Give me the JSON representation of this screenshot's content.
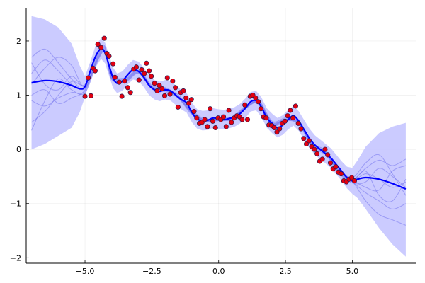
{
  "chart_data": {
    "type": "line",
    "title": "",
    "xlabel": "",
    "ylabel": "",
    "xlim": [
      -7.2,
      7.4
    ],
    "ylim": [
      -2.1,
      2.6
    ],
    "grid": true,
    "legend": "none",
    "xticks": [
      -5.0,
      -2.5,
      0.0,
      2.5,
      5.0
    ],
    "xtick_labels": [
      "−5.0",
      "−2.5",
      "0.0",
      "2.5",
      "5.0"
    ],
    "yticks": [
      -2,
      -1,
      0,
      1,
      2
    ],
    "ytick_labels": [
      "−2",
      "−1",
      "0",
      "1",
      "2"
    ],
    "colors": {
      "mean": "#0000ff",
      "band": "#c8c8ff",
      "samples": "#7a7aee",
      "points_fill": "#e3000f",
      "points_edge": "#2a1a50"
    },
    "mean": {
      "x": [
        -7.0,
        -6.5,
        -6.0,
        -5.5,
        -5.2,
        -5.0,
        -4.8,
        -4.6,
        -4.4,
        -4.25,
        -4.1,
        -3.95,
        -3.8,
        -3.6,
        -3.4,
        -3.2,
        -3.0,
        -2.8,
        -2.6,
        -2.4,
        -2.2,
        -2.0,
        -1.8,
        -1.6,
        -1.4,
        -1.2,
        -1.0,
        -0.8,
        -0.6,
        -0.4,
        -0.2,
        0.0,
        0.2,
        0.4,
        0.6,
        0.8,
        1.0,
        1.2,
        1.4,
        1.6,
        1.8,
        2.0,
        2.2,
        2.4,
        2.6,
        2.8,
        3.0,
        3.2,
        3.4,
        3.6,
        3.8,
        4.0,
        4.2,
        4.4,
        4.6,
        4.8,
        5.0,
        5.2,
        5.5,
        6.0,
        6.5,
        7.0
      ],
      "y": [
        1.23,
        1.27,
        1.25,
        1.18,
        1.12,
        1.16,
        1.45,
        1.72,
        1.86,
        1.78,
        1.55,
        1.32,
        1.22,
        1.26,
        1.38,
        1.47,
        1.44,
        1.33,
        1.18,
        1.1,
        1.07,
        1.1,
        1.08,
        1.0,
        0.92,
        0.86,
        0.68,
        0.56,
        0.53,
        0.54,
        0.58,
        0.56,
        0.55,
        0.57,
        0.6,
        0.66,
        0.76,
        0.88,
        0.9,
        0.78,
        0.58,
        0.48,
        0.4,
        0.45,
        0.55,
        0.62,
        0.52,
        0.36,
        0.2,
        0.08,
        0.0,
        -0.08,
        -0.16,
        -0.28,
        -0.4,
        -0.52,
        -0.58,
        -0.55,
        -0.52,
        -0.55,
        -0.63,
        -0.73
      ]
    },
    "band": {
      "x": [
        -7.0,
        -6.5,
        -6.0,
        -5.5,
        -5.2,
        -5.0,
        -4.8,
        -4.6,
        -4.4,
        -4.25,
        -4.1,
        -3.95,
        -3.8,
        -3.6,
        -3.4,
        -3.2,
        -3.0,
        -2.8,
        -2.6,
        -2.4,
        -2.2,
        -2.0,
        -1.8,
        -1.6,
        -1.4,
        -1.2,
        -1.0,
        -0.8,
        -0.6,
        -0.4,
        -0.2,
        0.0,
        0.2,
        0.4,
        0.6,
        0.8,
        1.0,
        1.2,
        1.4,
        1.6,
        1.8,
        2.0,
        2.2,
        2.4,
        2.6,
        2.8,
        3.0,
        3.2,
        3.4,
        3.6,
        3.8,
        4.0,
        4.2,
        4.4,
        4.6,
        4.8,
        5.0,
        5.2,
        5.5,
        6.0,
        6.5,
        7.0
      ],
      "upper": [
        2.46,
        2.4,
        2.25,
        1.95,
        1.55,
        1.35,
        1.62,
        1.92,
        2.05,
        1.97,
        1.74,
        1.51,
        1.4,
        1.44,
        1.56,
        1.65,
        1.62,
        1.51,
        1.36,
        1.28,
        1.25,
        1.28,
        1.26,
        1.18,
        1.1,
        1.04,
        0.86,
        0.74,
        0.71,
        0.72,
        0.76,
        0.74,
        0.73,
        0.75,
        0.78,
        0.84,
        0.94,
        1.06,
        1.08,
        0.96,
        0.76,
        0.66,
        0.58,
        0.63,
        0.73,
        0.8,
        0.7,
        0.54,
        0.38,
        0.26,
        0.18,
        0.1,
        0.02,
        -0.1,
        -0.22,
        -0.32,
        -0.34,
        -0.2,
        0.05,
        0.3,
        0.42,
        0.49
      ],
      "lower": [
        0.0,
        0.1,
        0.25,
        0.4,
        0.68,
        0.97,
        1.28,
        1.52,
        1.67,
        1.59,
        1.36,
        1.13,
        1.04,
        1.08,
        1.2,
        1.29,
        1.26,
        1.15,
        1.0,
        0.92,
        0.89,
        0.92,
        0.9,
        0.82,
        0.74,
        0.68,
        0.5,
        0.38,
        0.35,
        0.36,
        0.4,
        0.38,
        0.37,
        0.39,
        0.42,
        0.48,
        0.58,
        0.7,
        0.72,
        0.6,
        0.4,
        0.3,
        0.22,
        0.27,
        0.37,
        0.44,
        0.34,
        0.18,
        0.02,
        -0.1,
        -0.18,
        -0.26,
        -0.34,
        -0.46,
        -0.58,
        -0.72,
        -0.82,
        -0.9,
        -1.1,
        -1.45,
        -1.75,
        -1.98
      ]
    },
    "samples": [
      {
        "x": [
          -7.0,
          -6.5,
          -6.0,
          -5.5,
          -5.0,
          -4.5,
          -4.25,
          -4.0,
          -3.5,
          -3.0,
          -2.5,
          -2.0,
          -1.5,
          -1.0,
          -0.5,
          0.0,
          0.5,
          1.0,
          1.5,
          2.0,
          2.5,
          3.0,
          3.5,
          4.0,
          4.5,
          5.0,
          5.5,
          6.0,
          6.5,
          7.0
        ],
        "y": [
          1.7,
          1.85,
          1.6,
          1.3,
          1.12,
          1.76,
          1.88,
          1.36,
          1.3,
          1.46,
          1.16,
          1.12,
          0.98,
          0.7,
          0.54,
          0.56,
          0.58,
          0.78,
          0.88,
          0.5,
          0.56,
          0.5,
          0.1,
          -0.04,
          -0.38,
          -0.55,
          -0.35,
          -0.2,
          -0.3,
          -0.18
        ]
      },
      {
        "x": [
          -7.0,
          -6.5,
          -6.0,
          -5.5,
          -5.0,
          -4.5,
          -4.25,
          -4.0,
          -3.5,
          -3.0,
          -2.5,
          -2.0,
          -1.5,
          -1.0,
          -0.5,
          0.0,
          0.5,
          1.0,
          1.5,
          2.0,
          2.5,
          3.0,
          3.5,
          4.0,
          4.5,
          5.0,
          5.5,
          6.0,
          6.5,
          7.0
        ],
        "y": [
          0.5,
          0.7,
          1.0,
          1.25,
          1.2,
          1.68,
          1.8,
          1.3,
          1.26,
          1.42,
          1.14,
          1.08,
          0.96,
          0.66,
          0.52,
          0.54,
          0.56,
          0.76,
          0.86,
          0.46,
          0.54,
          0.48,
          0.06,
          -0.08,
          -0.42,
          -0.6,
          -0.8,
          -0.95,
          -1.1,
          -1.0
        ]
      },
      {
        "x": [
          -7.0,
          -6.5,
          -6.0,
          -5.5,
          -5.0,
          -4.5,
          -4.25,
          -4.0,
          -3.5,
          -3.0,
          -2.5,
          -2.0,
          -1.5,
          -1.0,
          -0.5,
          0.0,
          0.5,
          1.0,
          1.5,
          2.0,
          2.5,
          3.0,
          3.5,
          4.0,
          4.5,
          5.0,
          5.5,
          6.0,
          6.5,
          7.0
        ],
        "y": [
          1.2,
          1.5,
          1.7,
          1.55,
          1.15,
          1.72,
          1.84,
          1.34,
          1.28,
          1.44,
          1.15,
          1.11,
          0.97,
          0.68,
          0.53,
          0.55,
          0.57,
          0.77,
          0.87,
          0.48,
          0.55,
          0.49,
          0.08,
          -0.06,
          -0.4,
          -0.57,
          -0.45,
          -0.55,
          -0.7,
          -0.6
        ]
      },
      {
        "x": [
          -7.0,
          -6.5,
          -6.0,
          -5.5,
          -5.0,
          -4.5,
          -4.25,
          -4.0,
          -3.5,
          -3.0,
          -2.5,
          -2.0,
          -1.5,
          -1.0,
          -0.5,
          0.0,
          0.5,
          1.0,
          1.5,
          2.0,
          2.5,
          3.0,
          3.5,
          4.0,
          4.5,
          5.0,
          5.5,
          6.0,
          6.5,
          7.0
        ],
        "y": [
          0.9,
          0.8,
          0.95,
          1.05,
          1.08,
          1.7,
          1.82,
          1.32,
          1.24,
          1.4,
          1.12,
          1.06,
          0.94,
          0.64,
          0.51,
          0.53,
          0.55,
          0.75,
          0.85,
          0.44,
          0.53,
          0.46,
          0.04,
          -0.1,
          -0.44,
          -0.62,
          -0.6,
          -0.35,
          -0.5,
          -0.7
        ]
      },
      {
        "x": [
          -7.0,
          -6.5,
          -6.0,
          -5.5,
          -5.0,
          -4.5,
          -4.25,
          -4.0,
          -3.5,
          -3.0,
          -2.5,
          -2.0,
          -1.5,
          -1.0,
          -0.5,
          0.0,
          0.5,
          1.0,
          1.5,
          2.0,
          2.5,
          3.0,
          3.5,
          4.0,
          4.5,
          5.0,
          5.5,
          6.0,
          6.5,
          7.0
        ],
        "y": [
          1.6,
          1.2,
          1.1,
          1.35,
          1.18,
          1.78,
          1.9,
          1.38,
          1.32,
          1.48,
          1.18,
          1.14,
          1.0,
          0.72,
          0.56,
          0.58,
          0.6,
          0.8,
          0.9,
          0.52,
          0.58,
          0.52,
          0.12,
          -0.02,
          -0.36,
          -0.52,
          -0.25,
          -0.1,
          -0.45,
          -0.85
        ]
      },
      {
        "x": [
          -7.0,
          -6.5,
          -6.0,
          -5.5,
          -5.0,
          -4.5,
          -4.25,
          -4.0,
          -3.5,
          -3.0,
          -2.5,
          -2.0,
          -1.5,
          -1.0,
          -0.5,
          0.0,
          0.5,
          1.0,
          1.5,
          2.0,
          2.5,
          3.0,
          3.5,
          4.0,
          4.5,
          5.0,
          5.5,
          6.0,
          6.5,
          7.0
        ],
        "y": [
          0.35,
          0.9,
          1.3,
          1.1,
          1.05,
          1.66,
          1.78,
          1.29,
          1.25,
          1.41,
          1.13,
          1.09,
          0.95,
          0.67,
          0.52,
          0.54,
          0.56,
          0.76,
          0.86,
          0.47,
          0.54,
          0.47,
          0.07,
          -0.07,
          -0.41,
          -0.59,
          -0.95,
          -1.2,
          -1.3,
          -1.4
        ]
      },
      {
        "x": [
          -7.0,
          -6.5,
          -6.0,
          -5.5,
          -5.0,
          -4.5,
          -4.25,
          -4.0,
          -3.5,
          -3.0,
          -2.5,
          -2.0,
          -1.5,
          -1.0,
          -0.5,
          0.0,
          0.5,
          1.0,
          1.5,
          2.0,
          2.5,
          3.0,
          3.5,
          4.0,
          4.5,
          5.0,
          5.5,
          6.0,
          6.5,
          7.0
        ],
        "y": [
          1.4,
          1.65,
          1.45,
          1.2,
          1.14,
          1.74,
          1.86,
          1.35,
          1.29,
          1.45,
          1.16,
          1.11,
          0.97,
          0.69,
          0.54,
          0.56,
          0.58,
          0.78,
          0.88,
          0.49,
          0.56,
          0.5,
          0.09,
          -0.05,
          -0.39,
          -0.56,
          -0.7,
          -0.75,
          -0.4,
          -0.3
        ]
      },
      {
        "x": [
          -7.0,
          -6.5,
          -6.0,
          -5.5,
          -5.0,
          -4.5,
          -4.25,
          -4.0,
          -3.5,
          -3.0,
          -2.5,
          -2.0,
          -1.5,
          -1.0,
          -0.5,
          0.0,
          0.5,
          1.0,
          1.5,
          2.0,
          2.5,
          3.0,
          3.5,
          4.0,
          4.5,
          5.0,
          5.5,
          6.0,
          6.5,
          7.0
        ],
        "y": [
          1.0,
          1.1,
          0.85,
          0.95,
          1.1,
          1.69,
          1.81,
          1.31,
          1.27,
          1.43,
          1.14,
          1.1,
          0.96,
          0.67,
          0.53,
          0.55,
          0.57,
          0.77,
          0.87,
          0.47,
          0.55,
          0.48,
          0.08,
          -0.07,
          -0.42,
          -0.58,
          -0.4,
          -0.85,
          -0.95,
          -0.55
        ]
      }
    ],
    "points": {
      "x": [
        -5.0,
        -4.88,
        -4.78,
        -4.7,
        -4.62,
        -4.52,
        -4.4,
        -4.28,
        -4.18,
        -4.1,
        -3.95,
        -3.88,
        -3.72,
        -3.62,
        -3.52,
        -3.4,
        -3.3,
        -3.18,
        -3.08,
        -2.98,
        -2.88,
        -2.78,
        -2.7,
        -2.6,
        -2.52,
        -2.4,
        -2.3,
        -2.22,
        -2.12,
        -2.02,
        -1.92,
        -1.82,
        -1.72,
        -1.62,
        -1.52,
        -1.42,
        -1.32,
        -1.22,
        -1.12,
        -1.02,
        -0.92,
        -0.82,
        -0.72,
        -0.62,
        -0.52,
        -0.42,
        -0.32,
        -0.22,
        -0.12,
        -0.02,
        0.08,
        0.18,
        0.28,
        0.38,
        0.48,
        0.58,
        0.68,
        0.78,
        0.88,
        0.98,
        1.08,
        1.18,
        1.28,
        1.38,
        1.48,
        1.58,
        1.68,
        1.78,
        1.88,
        1.98,
        2.08,
        2.18,
        2.28,
        2.38,
        2.48,
        2.58,
        2.68,
        2.78,
        2.88,
        2.98,
        3.08,
        3.18,
        3.28,
        3.38,
        3.48,
        3.58,
        3.68,
        3.78,
        3.88,
        3.98,
        4.08,
        4.18,
        4.28,
        4.38,
        4.48,
        4.58,
        4.68,
        4.78,
        4.88,
        4.98,
        5.08
      ],
      "y": [
        0.98,
        1.32,
        0.99,
        1.5,
        1.45,
        1.94,
        1.88,
        2.05,
        1.77,
        1.72,
        1.58,
        1.33,
        1.24,
        0.98,
        1.26,
        1.14,
        1.05,
        1.48,
        1.52,
        1.28,
        1.47,
        1.4,
        1.59,
        1.45,
        1.35,
        1.22,
        1.08,
        1.18,
        1.12,
        0.99,
        1.32,
        1.02,
        1.26,
        1.14,
        0.78,
        1.05,
        1.08,
        0.95,
        0.85,
        0.92,
        0.7,
        0.58,
        0.48,
        0.5,
        0.55,
        0.42,
        0.75,
        0.52,
        0.4,
        0.58,
        0.55,
        0.6,
        0.42,
        0.72,
        0.5,
        0.58,
        0.62,
        0.6,
        0.55,
        0.82,
        0.55,
        0.98,
        1.0,
        0.95,
        0.88,
        0.75,
        0.6,
        0.58,
        0.45,
        0.44,
        0.4,
        0.32,
        0.38,
        0.48,
        0.52,
        0.62,
        0.72,
        0.58,
        0.8,
        0.48,
        0.38,
        0.2,
        0.1,
        0.16,
        0.05,
        0.0,
        -0.08,
        -0.22,
        -0.18,
        0.0,
        -0.1,
        -0.25,
        -0.36,
        -0.32,
        -0.42,
        -0.45,
        -0.58,
        -0.6,
        -0.55,
        -0.52,
        -0.58
      ]
    }
  }
}
